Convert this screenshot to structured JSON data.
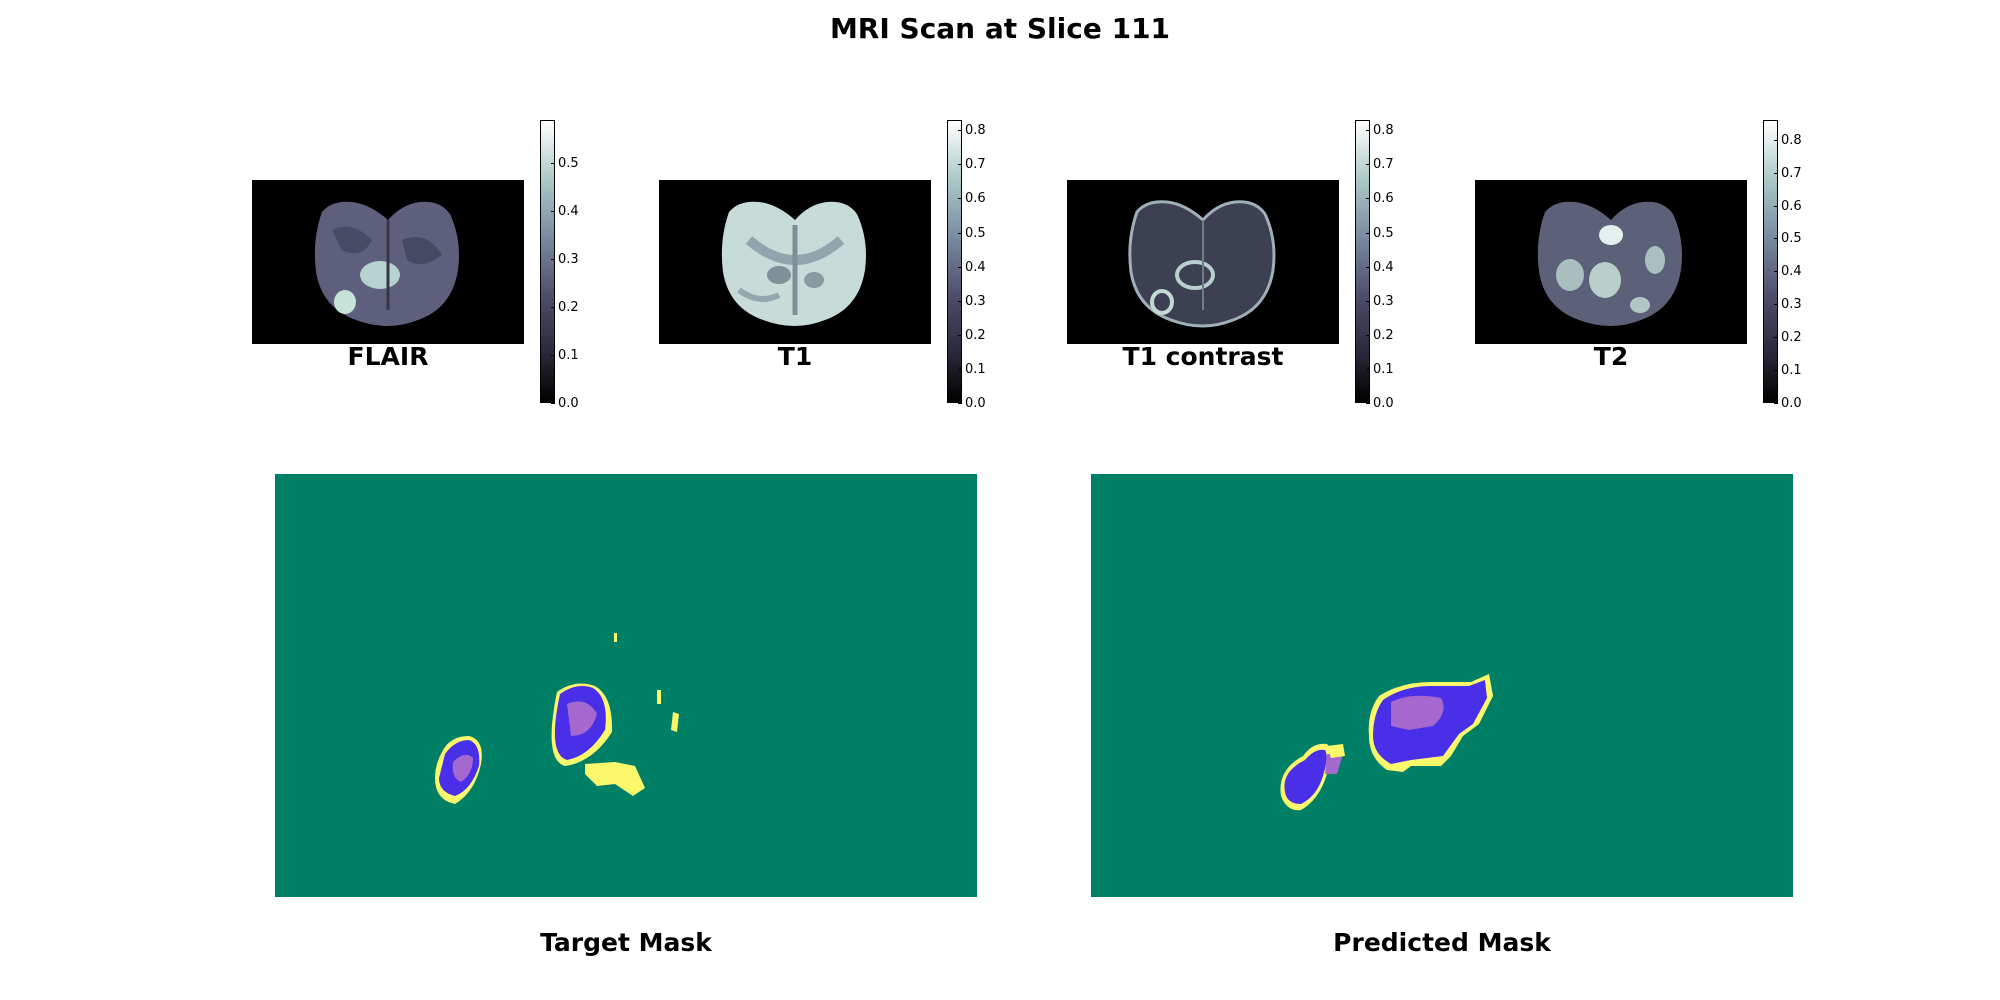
{
  "figure": {
    "title": "MRI Scan at Slice 111"
  },
  "modalities": [
    {
      "label": "FLAIR",
      "colorbar_ticks": [
        "0.0",
        "0.1",
        "0.2",
        "0.3",
        "0.4",
        "0.5"
      ],
      "colorbar_max": 0.59
    },
    {
      "label": "T1",
      "colorbar_ticks": [
        "0.0",
        "0.1",
        "0.2",
        "0.3",
        "0.4",
        "0.5",
        "0.6",
        "0.7",
        "0.8"
      ],
      "colorbar_max": 0.83
    },
    {
      "label": "T1 contrast",
      "colorbar_ticks": [
        "0.0",
        "0.1",
        "0.2",
        "0.3",
        "0.4",
        "0.5",
        "0.6",
        "0.7",
        "0.8"
      ],
      "colorbar_max": 0.83
    },
    {
      "label": "T2",
      "colorbar_ticks": [
        "0.0",
        "0.1",
        "0.2",
        "0.3",
        "0.4",
        "0.5",
        "0.6",
        "0.7",
        "0.8"
      ],
      "colorbar_max": 0.86
    }
  ],
  "masks": [
    {
      "label": "Target Mask"
    },
    {
      "label": "Predicted Mask"
    }
  ],
  "colors": {
    "mask_background": "#007f67",
    "edema": "#fbf96b",
    "enhancing": "#4a2fe8",
    "core": "#a468cf",
    "colormap": "bone"
  }
}
